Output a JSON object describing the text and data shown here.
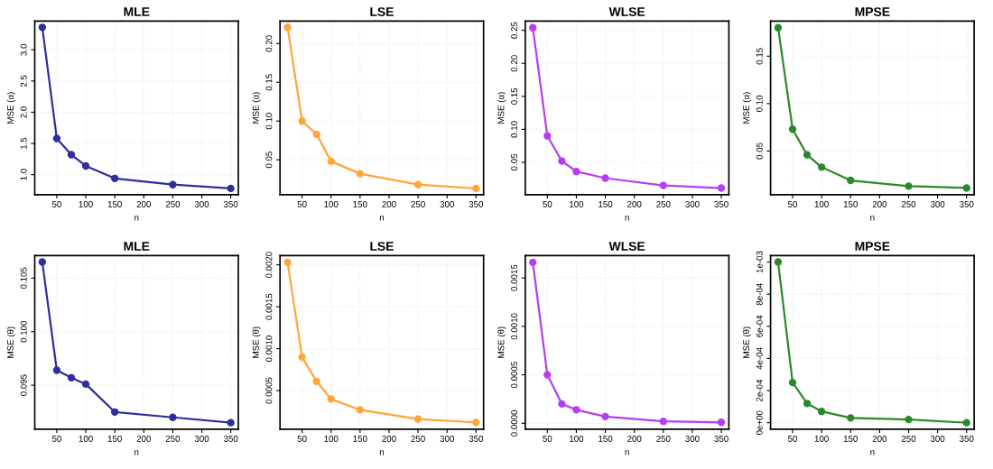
{
  "chart_data": [
    {
      "type": "line",
      "title": "MLE",
      "xlabel": "n",
      "ylabel": "MSE (α)",
      "x": [
        25,
        50,
        75,
        100,
        150,
        250,
        350
      ],
      "series": [
        {
          "color": "#2e2e9e",
          "values": [
            3.36,
            1.58,
            1.32,
            1.14,
            0.94,
            0.84,
            0.78
          ]
        }
      ],
      "xlim": [
        12,
        363
      ],
      "xticks": [
        50,
        100,
        150,
        200,
        250,
        300,
        350
      ],
      "ylim": [
        0.68,
        3.46
      ],
      "yticks": [
        {
          "value": 1,
          "label": "1.0"
        },
        {
          "value": 1.5,
          "label": "1.5"
        },
        {
          "value": 2,
          "label": "2.0"
        },
        {
          "value": 2.5,
          "label": "2.5"
        },
        {
          "value": 3,
          "label": "3.0"
        }
      ],
      "grid": true,
      "marker": "circle",
      "line_style": "solid"
    },
    {
      "type": "line",
      "title": "LSE",
      "xlabel": "n",
      "ylabel": "MSE (α)",
      "x": [
        25,
        50,
        75,
        100,
        150,
        250,
        350
      ],
      "series": [
        {
          "color": "#ffa53a",
          "values": [
            0.221,
            0.1,
            0.083,
            0.048,
            0.032,
            0.018,
            0.013
          ]
        }
      ],
      "xlim": [
        12,
        363
      ],
      "xticks": [
        50,
        100,
        150,
        200,
        250,
        300,
        350
      ],
      "ylim": [
        0.005,
        0.229
      ],
      "yticks": [
        0.05,
        {
          "value": 0.1,
          "label": "0.10"
        },
        0.15,
        {
          "value": 0.2,
          "label": "0.20"
        }
      ],
      "grid": true,
      "marker": "circle",
      "line_style": "solid"
    },
    {
      "type": "line",
      "title": "WLSE",
      "xlabel": "n",
      "ylabel": "MSE (α)",
      "x": [
        25,
        50,
        75,
        100,
        150,
        250,
        350
      ],
      "series": [
        {
          "color": "#b53ef0",
          "values": [
            0.254,
            0.09,
            0.052,
            0.036,
            0.026,
            0.015,
            0.011
          ]
        }
      ],
      "xlim": [
        12,
        363
      ],
      "xticks": [
        50,
        100,
        150,
        200,
        250,
        300,
        350
      ],
      "ylim": [
        0.001,
        0.264
      ],
      "yticks": [
        0.05,
        {
          "value": 0.1,
          "label": "0.10"
        },
        0.15,
        {
          "value": 0.2,
          "label": "0.20"
        },
        0.25
      ],
      "grid": true,
      "marker": "circle",
      "line_style": "solid"
    },
    {
      "type": "line",
      "title": "MPSE",
      "xlabel": "n",
      "ylabel": "MSE (α)",
      "x": [
        25,
        50,
        75,
        100,
        150,
        250,
        350
      ],
      "series": [
        {
          "color": "#2a8a2a",
          "values": [
            0.18,
            0.073,
            0.046,
            0.033,
            0.019,
            0.013,
            0.011
          ]
        }
      ],
      "xlim": [
        12,
        363
      ],
      "xticks": [
        50,
        100,
        150,
        200,
        250,
        300,
        350
      ],
      "ylim": [
        0.004,
        0.187
      ],
      "yticks": [
        0.05,
        {
          "value": 0.1,
          "label": "0.10"
        },
        0.15
      ],
      "grid": true,
      "marker": "circle",
      "line_style": "solid"
    },
    {
      "type": "line",
      "title": "MLE",
      "xlabel": "n",
      "ylabel": "MSE (θ)",
      "x": [
        25,
        50,
        75,
        100,
        150,
        250,
        350
      ],
      "series": [
        {
          "color": "#2e2e9e",
          "values": [
            0.1065,
            0.0964,
            0.0957,
            0.0951,
            0.0925,
            0.092,
            0.0915
          ]
        }
      ],
      "xlim": [
        12,
        363
      ],
      "xticks": [
        50,
        100,
        150,
        200,
        250,
        300,
        350
      ],
      "ylim": [
        0.0909,
        0.1071
      ],
      "yticks": [
        0.095,
        {
          "value": 0.1,
          "label": "0.100"
        },
        0.105
      ],
      "grid": true,
      "marker": "circle",
      "line_style": "solid"
    },
    {
      "type": "line",
      "title": "LSE",
      "xlabel": "n",
      "ylabel": "MSE (θ)",
      "x": [
        25,
        50,
        75,
        100,
        150,
        250,
        350
      ],
      "series": [
        {
          "color": "#ffa53a",
          "values": [
            0.00203,
            0.0009,
            0.00061,
            0.0004,
            0.00027,
            0.00016,
            0.00012
          ]
        }
      ],
      "xlim": [
        12,
        363
      ],
      "xticks": [
        50,
        100,
        150,
        200,
        250,
        300,
        350
      ],
      "ylim": [
        4e-05,
        0.00211
      ],
      "yticks": [
        {
          "value": 0.0005,
          "label": "0.0005"
        },
        {
          "value": 0.001,
          "label": "0.0010"
        },
        {
          "value": 0.0015,
          "label": "0.0015"
        },
        {
          "value": 0.002,
          "label": "0.0020"
        }
      ],
      "grid": true,
      "marker": "circle",
      "line_style": "solid"
    },
    {
      "type": "line",
      "title": "WLSE",
      "xlabel": "n",
      "ylabel": "MSE (θ)",
      "x": [
        25,
        50,
        75,
        100,
        150,
        250,
        350
      ],
      "series": [
        {
          "color": "#b53ef0",
          "values": [
            0.00166,
            0.0005,
            0.0002,
            0.00014,
            7e-05,
            2e-05,
            1e-05
          ]
        }
      ],
      "xlim": [
        12,
        363
      ],
      "xticks": [
        50,
        100,
        150,
        200,
        250,
        300,
        350
      ],
      "ylim": [
        -6e-05,
        0.00173
      ],
      "yticks": [
        {
          "value": 0,
          "label": "0.0000"
        },
        {
          "value": 0.0005,
          "label": "0.0005"
        },
        {
          "value": 0.001,
          "label": "0.0010"
        },
        {
          "value": 0.0015,
          "label": "0.0015"
        }
      ],
      "grid": true,
      "marker": "circle",
      "line_style": "solid"
    },
    {
      "type": "line",
      "title": "MPSE",
      "xlabel": "n",
      "ylabel": "MSE (θ)",
      "x": [
        25,
        50,
        75,
        100,
        150,
        250,
        350
      ],
      "series": [
        {
          "color": "#2a8a2a",
          "values": [
            0.001,
            0.00025,
            0.00012,
            7e-05,
            3e-05,
            2e-05,
            0
          ]
        }
      ],
      "xlim": [
        12,
        363
      ],
      "xticks": [
        50,
        100,
        150,
        200,
        250,
        300,
        350
      ],
      "ylim": [
        -4e-05,
        0.00104
      ],
      "yticks": [
        {
          "value": 0,
          "label": "0e+00"
        },
        {
          "value": 0.0002,
          "label": "2e-04"
        },
        {
          "value": 0.0004,
          "label": "4e-04"
        },
        {
          "value": 0.0006,
          "label": "6e-04"
        },
        {
          "value": 0.0008,
          "label": "8e-04"
        },
        {
          "value": 0.001,
          "label": "1e-03"
        }
      ],
      "grid": true,
      "marker": "circle",
      "line_style": "solid"
    }
  ]
}
